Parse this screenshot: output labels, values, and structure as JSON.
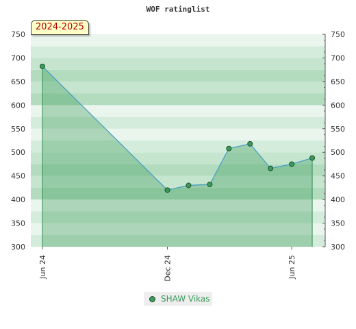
{
  "chart_data": {
    "type": "area",
    "title": "WOF ratinglist",
    "season": "2024-2025",
    "xlabel": "",
    "ylabel": "",
    "ylim": [
      300,
      750
    ],
    "yticks": [
      300,
      350,
      400,
      450,
      500,
      550,
      600,
      650,
      700,
      750
    ],
    "xlim": [
      "2024-05-15",
      "2025-07-20"
    ],
    "xticks": [
      {
        "label": "Jun 24",
        "date": "2024-06-01"
      },
      {
        "label": "Dec 24",
        "date": "2024-12-01"
      },
      {
        "label": "Jun 25",
        "date": "2025-06-01"
      }
    ],
    "series": [
      {
        "name": "SHAW Vikas",
        "color": "#3a9a5a",
        "points": [
          {
            "x": "2024-06-01",
            "y": 682
          },
          {
            "x": "2024-12-01",
            "y": 420
          },
          {
            "x": "2025-01-01",
            "y": 430
          },
          {
            "x": "2025-02-01",
            "y": 432
          },
          {
            "x": "2025-03-01",
            "y": 508
          },
          {
            "x": "2025-04-01",
            "y": 518
          },
          {
            "x": "2025-05-01",
            "y": 466
          },
          {
            "x": "2025-06-01",
            "y": 475
          },
          {
            "x": "2025-07-01",
            "y": 488
          }
        ]
      }
    ],
    "grid": true,
    "legend_position": "bottom"
  }
}
